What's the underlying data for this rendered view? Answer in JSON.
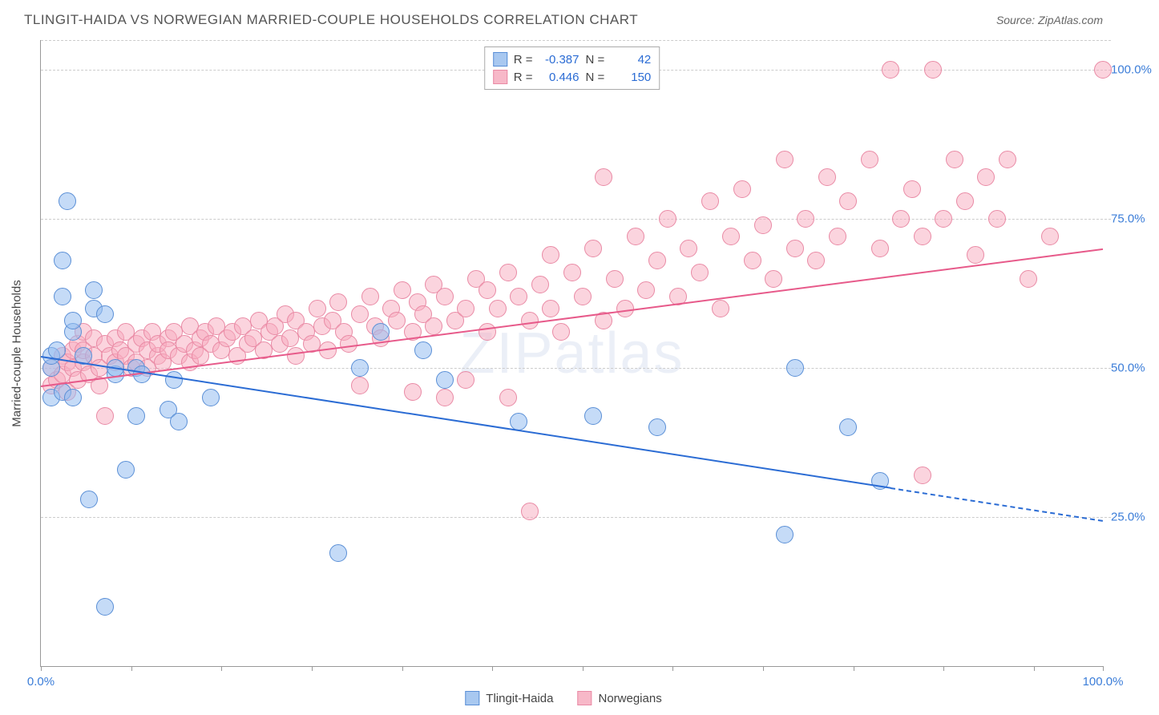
{
  "title": "TLINGIT-HAIDA VS NORWEGIAN MARRIED-COUPLE HOUSEHOLDS CORRELATION CHART",
  "source_text": "Source: ZipAtlas.com",
  "ylabel": "Married-couple Households",
  "watermark": "ZIPatlas",
  "chart": {
    "type": "scatter",
    "xlim": [
      0,
      100
    ],
    "ylim": [
      0,
      105
    ],
    "yticks": [
      25.0,
      50.0,
      75.0,
      100.0
    ],
    "ytick_labels": [
      "25.0%",
      "50.0%",
      "75.0%",
      "100.0%"
    ],
    "xtick_positions": [
      0,
      8.5,
      17,
      25.5,
      34,
      42.5,
      51,
      59.5,
      68,
      76.5,
      85,
      93.5,
      100
    ],
    "xstart_label": "0.0%",
    "xend_label": "100.0%",
    "grid_color": "#cccccc",
    "background_color": "#ffffff",
    "axis_color": "#999999",
    "tick_label_color": "#3b7dd8",
    "point_radius": 11
  },
  "series": {
    "blue": {
      "name": "Tlingit-Haida",
      "fill": "rgba(150, 190, 240, 0.55)",
      "stroke": "#5a8fd6",
      "swatch_fill": "#a8c8f0",
      "swatch_border": "#5a8fd6",
      "R": "-0.387",
      "N": "42",
      "trend": {
        "x1": 0,
        "y1": 52,
        "x2": 80,
        "y2": 30,
        "color": "#2b6cd4"
      },
      "trend_ext": {
        "x1": 80,
        "y1": 30,
        "x2": 100,
        "y2": 24.5,
        "color": "#2b6cd4"
      },
      "points": [
        [
          1,
          50
        ],
        [
          1,
          52
        ],
        [
          1,
          45
        ],
        [
          1.5,
          53
        ],
        [
          2,
          46
        ],
        [
          2,
          62
        ],
        [
          2,
          68
        ],
        [
          2.5,
          78
        ],
        [
          3,
          56
        ],
        [
          3,
          45
        ],
        [
          3,
          58
        ],
        [
          4,
          52
        ],
        [
          4.5,
          28
        ],
        [
          5,
          60
        ],
        [
          5,
          63
        ],
        [
          6,
          59
        ],
        [
          6,
          10
        ],
        [
          7,
          49
        ],
        [
          7,
          50
        ],
        [
          8,
          33
        ],
        [
          9,
          42
        ],
        [
          9,
          50
        ],
        [
          9.5,
          49
        ],
        [
          12,
          43
        ],
        [
          12.5,
          48
        ],
        [
          13,
          41
        ],
        [
          16,
          45
        ],
        [
          28,
          19
        ],
        [
          30,
          50
        ],
        [
          32,
          56
        ],
        [
          36,
          53
        ],
        [
          38,
          48
        ],
        [
          45,
          41
        ],
        [
          52,
          42
        ],
        [
          58,
          40
        ],
        [
          70,
          22
        ],
        [
          71,
          50
        ],
        [
          76,
          40
        ],
        [
          79,
          31
        ]
      ]
    },
    "pink": {
      "name": "Norwegians",
      "fill": "rgba(248, 170, 190, 0.5)",
      "stroke": "#e98aa5",
      "swatch_fill": "#f7b8c8",
      "swatch_border": "#e98aa5",
      "R": "0.446",
      "N": "150",
      "trend": {
        "x1": 0,
        "y1": 47,
        "x2": 100,
        "y2": 70,
        "color": "#e75a8a"
      },
      "points": [
        [
          1,
          47
        ],
        [
          1,
          50
        ],
        [
          1.5,
          48
        ],
        [
          2,
          49
        ],
        [
          2,
          52
        ],
        [
          2.5,
          51
        ],
        [
          2.5,
          46
        ],
        [
          3,
          53
        ],
        [
          3,
          50
        ],
        [
          3.5,
          48
        ],
        [
          3.5,
          54
        ],
        [
          4,
          51
        ],
        [
          4,
          53
        ],
        [
          4,
          56
        ],
        [
          4.5,
          49
        ],
        [
          5,
          52
        ],
        [
          5,
          55
        ],
        [
          5.5,
          50
        ],
        [
          5.5,
          47
        ],
        [
          6,
          54
        ],
        [
          6,
          42
        ],
        [
          6.5,
          52
        ],
        [
          7,
          51
        ],
        [
          7,
          55
        ],
        [
          7.5,
          53
        ],
        [
          8,
          52
        ],
        [
          8,
          56
        ],
        [
          8.5,
          50
        ],
        [
          9,
          54
        ],
        [
          9,
          51
        ],
        [
          9.5,
          55
        ],
        [
          10,
          53
        ],
        [
          10,
          50
        ],
        [
          10.5,
          56
        ],
        [
          11,
          52
        ],
        [
          11,
          54
        ],
        [
          11.5,
          51
        ],
        [
          12,
          55
        ],
        [
          12,
          53
        ],
        [
          12.5,
          56
        ],
        [
          13,
          52
        ],
        [
          13.5,
          54
        ],
        [
          14,
          51
        ],
        [
          14,
          57
        ],
        [
          14.5,
          53
        ],
        [
          15,
          55
        ],
        [
          15,
          52
        ],
        [
          15.5,
          56
        ],
        [
          16,
          54
        ],
        [
          16.5,
          57
        ],
        [
          17,
          53
        ],
        [
          17.5,
          55
        ],
        [
          18,
          56
        ],
        [
          18.5,
          52
        ],
        [
          19,
          57
        ],
        [
          19.5,
          54
        ],
        [
          20,
          55
        ],
        [
          20.5,
          58
        ],
        [
          21,
          53
        ],
        [
          21.5,
          56
        ],
        [
          22,
          57
        ],
        [
          22.5,
          54
        ],
        [
          23,
          59
        ],
        [
          23.5,
          55
        ],
        [
          24,
          52
        ],
        [
          24,
          58
        ],
        [
          25,
          56
        ],
        [
          25.5,
          54
        ],
        [
          26,
          60
        ],
        [
          26.5,
          57
        ],
        [
          27,
          53
        ],
        [
          27.5,
          58
        ],
        [
          28,
          61
        ],
        [
          28.5,
          56
        ],
        [
          29,
          54
        ],
        [
          30,
          47
        ],
        [
          30,
          59
        ],
        [
          31,
          62
        ],
        [
          31.5,
          57
        ],
        [
          32,
          55
        ],
        [
          33,
          60
        ],
        [
          33.5,
          58
        ],
        [
          34,
          63
        ],
        [
          35,
          56
        ],
        [
          35,
          46
        ],
        [
          35.5,
          61
        ],
        [
          36,
          59
        ],
        [
          37,
          57
        ],
        [
          37,
          64
        ],
        [
          38,
          45
        ],
        [
          38,
          62
        ],
        [
          39,
          58
        ],
        [
          40,
          60
        ],
        [
          40,
          48
        ],
        [
          41,
          65
        ],
        [
          42,
          56
        ],
        [
          42,
          63
        ],
        [
          43,
          60
        ],
        [
          44,
          45
        ],
        [
          44,
          66
        ],
        [
          45,
          62
        ],
        [
          46,
          58
        ],
        [
          46,
          26
        ],
        [
          47,
          64
        ],
        [
          48,
          60
        ],
        [
          48,
          69
        ],
        [
          49,
          56
        ],
        [
          50,
          66
        ],
        [
          51,
          62
        ],
        [
          52,
          70
        ],
        [
          53,
          58
        ],
        [
          53,
          82
        ],
        [
          54,
          65
        ],
        [
          55,
          60
        ],
        [
          56,
          72
        ],
        [
          57,
          63
        ],
        [
          58,
          68
        ],
        [
          59,
          75
        ],
        [
          60,
          62
        ],
        [
          61,
          70
        ],
        [
          62,
          66
        ],
        [
          63,
          78
        ],
        [
          64,
          60
        ],
        [
          65,
          72
        ],
        [
          66,
          80
        ],
        [
          67,
          68
        ],
        [
          68,
          74
        ],
        [
          69,
          65
        ],
        [
          70,
          85
        ],
        [
          71,
          70
        ],
        [
          72,
          75
        ],
        [
          73,
          68
        ],
        [
          74,
          82
        ],
        [
          75,
          72
        ],
        [
          76,
          78
        ],
        [
          78,
          85
        ],
        [
          79,
          70
        ],
        [
          80,
          100
        ],
        [
          81,
          75
        ],
        [
          82,
          80
        ],
        [
          83,
          72
        ],
        [
          84,
          100
        ],
        [
          85,
          75
        ],
        [
          86,
          85
        ],
        [
          87,
          78
        ],
        [
          88,
          69
        ],
        [
          89,
          82
        ],
        [
          90,
          75
        ],
        [
          91,
          85
        ],
        [
          93,
          65
        ],
        [
          95,
          72
        ],
        [
          83,
          32
        ],
        [
          100,
          100
        ]
      ]
    }
  },
  "stats_labels": {
    "R": "R =",
    "N": "N ="
  },
  "legend_labels": {
    "blue": "Tlingit-Haida",
    "pink": "Norwegians"
  }
}
